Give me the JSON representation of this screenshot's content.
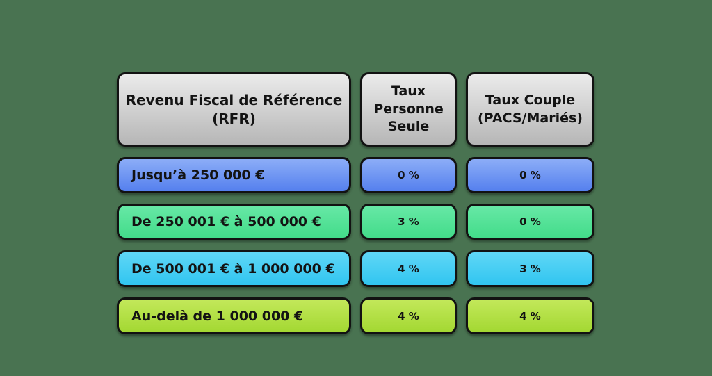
{
  "colors": {
    "background": "#497351",
    "border": "#121212",
    "text": "#131313",
    "header_top": "#ebebeb",
    "header_bottom": "#b6b6b6",
    "row_blue_top": "#8cadf7",
    "row_blue_bottom": "#5580ee",
    "row_green_top": "#67e8a6",
    "row_green_bottom": "#43dc8a",
    "row_cyan_top": "#60d7f6",
    "row_cyan_bottom": "#31c5f0",
    "row_lime_top": "#c3e85a",
    "row_lime_bottom": "#a3d832"
  },
  "chart_data": {
    "type": "table",
    "columns": [
      "Revenu Fiscal de Référence (RFR)",
      "Taux Personne Seule",
      "Taux Couple (PACS/Mariés)"
    ],
    "rows": [
      [
        "Jusqu’à 250 000 €",
        "0 %",
        "0 %"
      ],
      [
        "De 250 001 € à 500 000 €",
        "3 %",
        "0 %"
      ],
      [
        "De 500 001 € à 1 000 000 €",
        "4 %",
        "3 %"
      ],
      [
        "Au-delà de 1 000 000 €",
        "4 %",
        "4 %"
      ]
    ],
    "row_colors": [
      "blue",
      "green",
      "cyan",
      "lime"
    ]
  }
}
